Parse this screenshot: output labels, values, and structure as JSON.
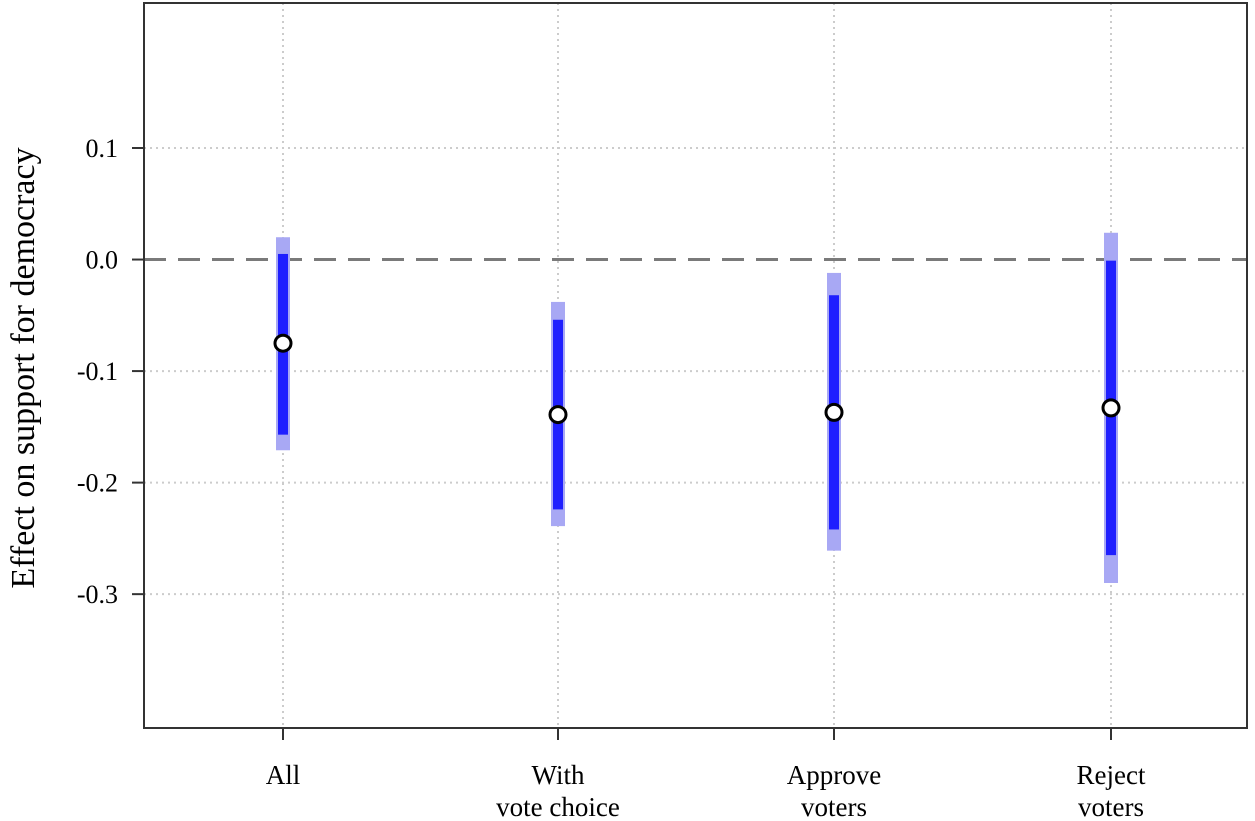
{
  "chart_data": {
    "type": "scatter",
    "ylabel": "Effect on support for democracy",
    "xlabel": "",
    "ylim": [
      -0.42,
      0.23
    ],
    "yticks": [
      0.1,
      0.0,
      -0.1,
      -0.2,
      -0.3
    ],
    "ytick_labels": [
      "0.1",
      "0.0",
      "-0.1",
      "-0.2",
      "-0.3"
    ],
    "reference_line": 0.0,
    "grid": true,
    "categories": [
      {
        "lines": [
          "All"
        ]
      },
      {
        "lines": [
          "With",
          "vote choice"
        ]
      },
      {
        "lines": [
          "Approve",
          "voters"
        ]
      },
      {
        "lines": [
          "Reject",
          "voters"
        ]
      }
    ],
    "estimates": [
      -0.075,
      -0.139,
      -0.137,
      -0.133
    ],
    "ci90": [
      [
        -0.157,
        0.005
      ],
      [
        -0.224,
        -0.054
      ],
      [
        -0.242,
        -0.032
      ],
      [
        -0.265,
        -0.001
      ]
    ],
    "ci95": [
      [
        -0.171,
        0.02
      ],
      [
        -0.239,
        -0.038
      ],
      [
        -0.261,
        -0.012
      ],
      [
        -0.29,
        0.024
      ]
    ],
    "colors": {
      "ci90": "#1f1fff",
      "ci95": "#a8a8f4",
      "point_fill": "#ffffff",
      "point_stroke": "#000000",
      "reference_line": "#7a7a7a",
      "grid": "#cccccc",
      "frame": "#333333"
    }
  }
}
